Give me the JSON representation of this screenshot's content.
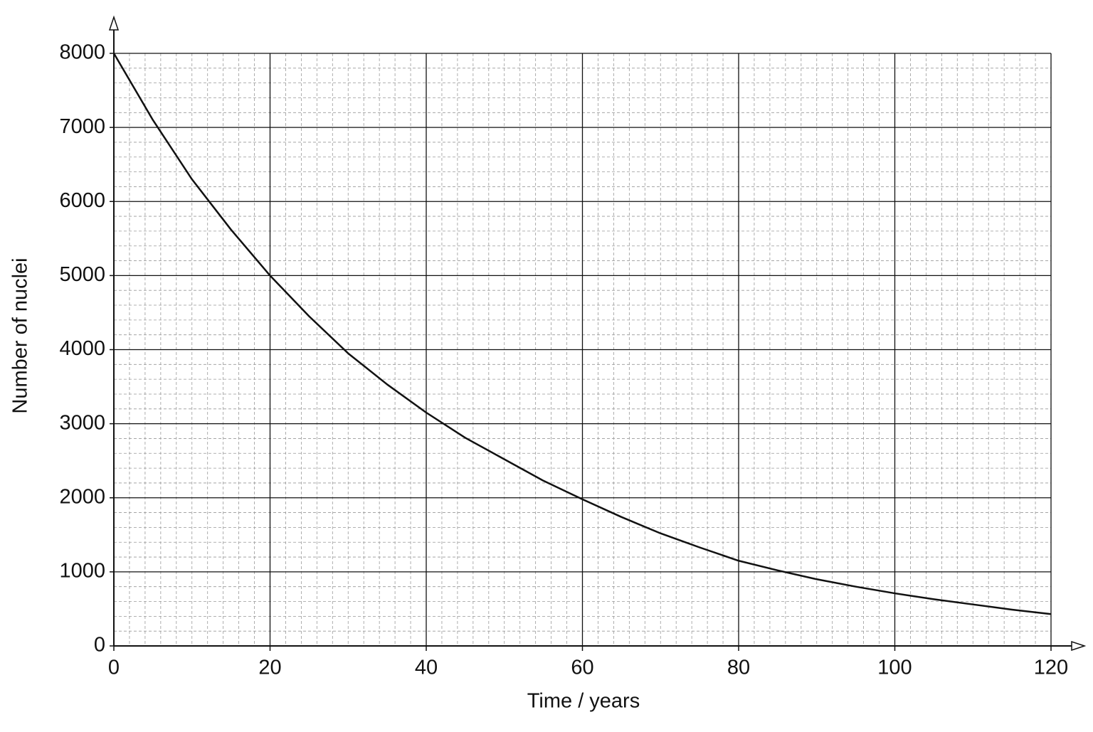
{
  "chart_data": {
    "type": "line",
    "x_label": "Time / years",
    "y_label": "Number of nuclei",
    "x": [
      0,
      5,
      10,
      15,
      20,
      25,
      30,
      35,
      40,
      45,
      50,
      55,
      60,
      65,
      70,
      75,
      80,
      85,
      90,
      95,
      100,
      105,
      110,
      115,
      120
    ],
    "values": [
      8000,
      7100,
      6300,
      5620,
      5000,
      4450,
      3950,
      3530,
      3150,
      2810,
      2520,
      2230,
      1980,
      1740,
      1520,
      1330,
      1150,
      1020,
      900,
      800,
      710,
      630,
      560,
      490,
      430
    ],
    "color": "#111111",
    "xlim": [
      0,
      120
    ],
    "xticks": [
      0,
      20,
      40,
      60,
      80,
      100,
      120
    ],
    "ylim": [
      0,
      8000
    ],
    "yticks": [
      0,
      1000,
      2000,
      3000,
      4000,
      5000,
      6000,
      7000,
      8000
    ],
    "grid": true
  }
}
